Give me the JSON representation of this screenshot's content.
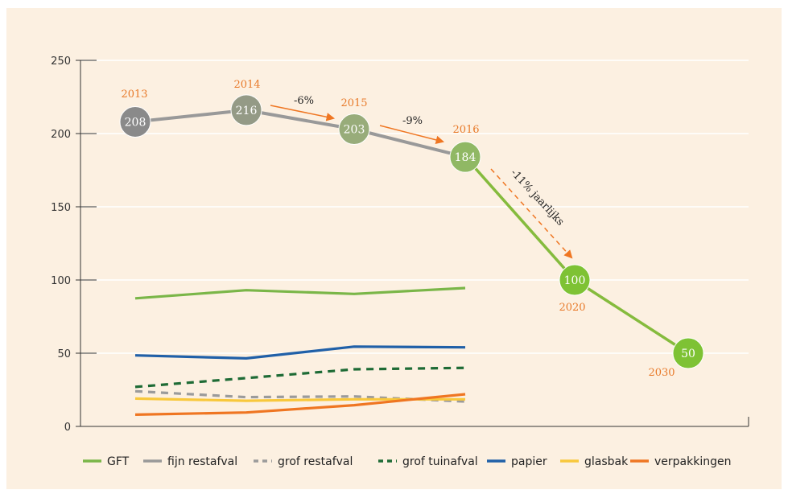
{
  "chart_data": {
    "type": "line",
    "title": "",
    "xlabel": "",
    "ylabel": "",
    "ylim": [
      0,
      250
    ],
    "yticks": [
      "0",
      "50",
      "100",
      "150",
      "200",
      "250"
    ],
    "grid": true,
    "legend_position": "bottom",
    "x": [
      2013,
      2014,
      2015,
      2016
    ],
    "series": [
      {
        "name": "GFT",
        "color": "#7ab648",
        "style": "solid",
        "values": [
          87.5,
          93,
          90.5,
          94.5
        ]
      },
      {
        "name": "fijn restafval",
        "color": "#999999",
        "style": "solid",
        "values": [
          208,
          216,
          203,
          184
        ]
      },
      {
        "name": "grof restafval",
        "color": "#9b9b9b",
        "style": "dashed",
        "values": [
          24,
          20,
          20.5,
          17
        ]
      },
      {
        "name": "grof tuinafval",
        "color": "#1e6b35",
        "style": "dashed",
        "values": [
          27,
          33,
          39,
          40
        ]
      },
      {
        "name": "papier",
        "color": "#2060a8",
        "style": "solid",
        "values": [
          48.5,
          46.5,
          54.5,
          54
        ]
      },
      {
        "name": "glasbak",
        "color": "#f8c83c",
        "style": "solid",
        "values": [
          19,
          17.5,
          18.5,
          18.5
        ]
      },
      {
        "name": "verpakkingen",
        "color": "#ef7622",
        "style": "solid",
        "values": [
          8,
          9.5,
          14.5,
          22
        ]
      }
    ],
    "projection": {
      "color": "#85bb3d",
      "points": [
        {
          "year": "2016",
          "value": 184
        },
        {
          "year": "2020",
          "value": 100
        },
        {
          "year": "2030",
          "value": 50
        }
      ]
    },
    "bubbles": [
      {
        "year": "2013",
        "value": 208,
        "label": "208",
        "color": "#8a8a8a"
      },
      {
        "year": "2014",
        "value": 216,
        "label": "216",
        "color": "#949a86"
      },
      {
        "year": "2015",
        "value": 203,
        "label": "203",
        "color": "#98ac7a"
      },
      {
        "year": "2016",
        "value": 184,
        "label": "184",
        "color": "#90b864"
      },
      {
        "year": "2020",
        "value": 100,
        "label": "100",
        "color": "#7ec234"
      },
      {
        "year": "2030",
        "value": 50,
        "label": "50",
        "color": "#7ec234"
      }
    ],
    "annotations": [
      {
        "text": "-6%",
        "from": "2014",
        "to": "2015"
      },
      {
        "text": "-9%",
        "from": "2015",
        "to": "2016"
      },
      {
        "text": "-11% jaarlijks",
        "from": "2016",
        "to": "2020"
      }
    ],
    "annotation_color": "#ef7622"
  }
}
